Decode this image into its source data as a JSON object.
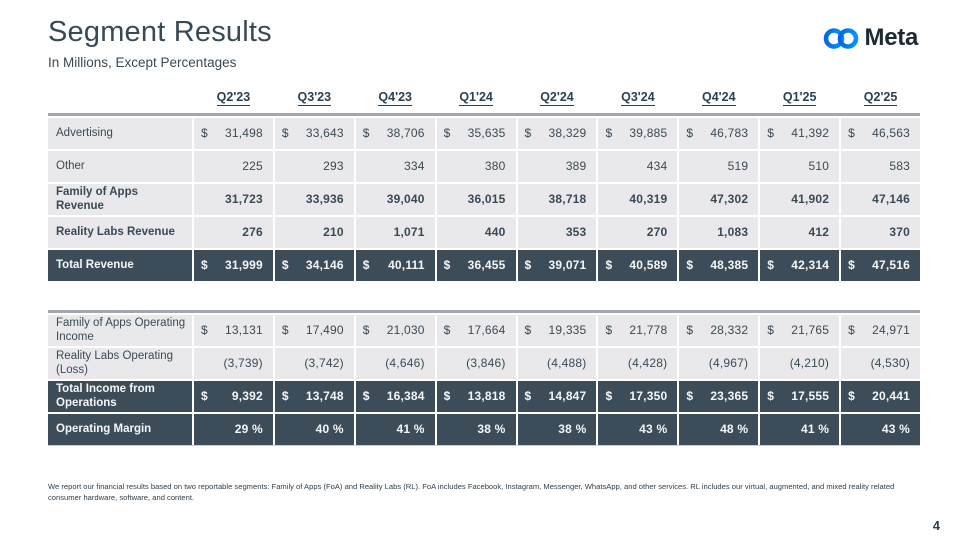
{
  "slide": {
    "title": "Segment Results",
    "subtitle": "In Millions, Except Percentages",
    "logo_text": "Meta",
    "page_number": "4",
    "footnote": "We report our financial results based on two reportable segments: Family of Apps (FoA) and Reality Labs (RL). FoA includes Facebook, Instagram, Messenger, WhatsApp, and other services. RL includes our virtual, augmented, and mixed reality related consumer hardware, software, and content."
  },
  "colors": {
    "dark_row_bg": "#3c4d59",
    "light_row_bg": "#e9e9eb",
    "text_dark": "#3a4a55",
    "meta_blue_start": "#0668E1",
    "meta_blue_end": "#0593ff"
  },
  "quarters": [
    "Q2'23",
    "Q3'23",
    "Q4'23",
    "Q1'24",
    "Q2'24",
    "Q3'24",
    "Q4'24",
    "Q1'25",
    "Q2'25"
  ],
  "tables": [
    {
      "name": "revenue",
      "show_header": true,
      "rows": [
        {
          "label": "Advertising",
          "variant": "light",
          "bold": false,
          "dollar": true,
          "values": [
            "31,498",
            "33,643",
            "38,706",
            "35,635",
            "38,329",
            "39,885",
            "46,783",
            "41,392",
            "46,563"
          ]
        },
        {
          "label": "Other",
          "variant": "light",
          "bold": false,
          "dollar": false,
          "values": [
            "225",
            "293",
            "334",
            "380",
            "389",
            "434",
            "519",
            "510",
            "583"
          ]
        },
        {
          "label": "Family of Apps Revenue",
          "variant": "light",
          "bold": true,
          "dollar": false,
          "values": [
            "31,723",
            "33,936",
            "39,040",
            "36,015",
            "38,718",
            "40,319",
            "47,302",
            "41,902",
            "47,146"
          ]
        },
        {
          "label": "Reality Labs Revenue",
          "variant": "light",
          "bold": true,
          "dollar": false,
          "values": [
            "276",
            "210",
            "1,071",
            "440",
            "353",
            "270",
            "1,083",
            "412",
            "370"
          ]
        },
        {
          "label": "Total Revenue",
          "variant": "dark",
          "bold": true,
          "dollar": true,
          "values": [
            "31,999",
            "34,146",
            "40,111",
            "36,455",
            "39,071",
            "40,589",
            "48,385",
            "42,314",
            "47,516"
          ]
        }
      ]
    },
    {
      "name": "operating",
      "show_header": false,
      "rows": [
        {
          "label": "Family of Apps Operating Income",
          "variant": "light",
          "bold": false,
          "dollar": true,
          "values": [
            "13,131",
            "17,490",
            "21,030",
            "17,664",
            "19,335",
            "21,778",
            "28,332",
            "21,765",
            "24,971"
          ]
        },
        {
          "label": "Reality Labs Operating (Loss)",
          "variant": "light",
          "bold": false,
          "dollar": false,
          "values": [
            "(3,739)",
            "(3,742)",
            "(4,646)",
            "(3,846)",
            "(4,488)",
            "(4,428)",
            "(4,967)",
            "(4,210)",
            "(4,530)"
          ]
        },
        {
          "label": "Total Income from Operations",
          "variant": "dark",
          "bold": true,
          "dollar": true,
          "values": [
            "9,392",
            "13,748",
            "16,384",
            "13,818",
            "14,847",
            "17,350",
            "23,365",
            "17,555",
            "20,441"
          ]
        },
        {
          "label": "Operating Margin",
          "variant": "dark",
          "bold": true,
          "dollar": false,
          "values": [
            "29 %",
            "40 %",
            "41 %",
            "38 %",
            "38 %",
            "43 %",
            "48 %",
            "41 %",
            "43 %"
          ]
        }
      ]
    }
  ]
}
